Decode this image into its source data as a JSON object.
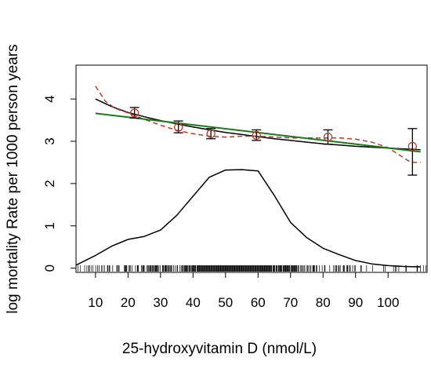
{
  "chart_data": {
    "type": "line",
    "xlabel": "25-hydroxyvitamin D (nmol/L)",
    "ylabel": "log mortality Rate per 1000 person years",
    "xlim": [
      4,
      112
    ],
    "ylim": [
      -0.1,
      4.8
    ],
    "xticks": [
      10,
      20,
      30,
      40,
      50,
      60,
      70,
      80,
      90,
      100
    ],
    "yticks": [
      0,
      1,
      2,
      3,
      4
    ],
    "grid": false,
    "legend": "none",
    "series": [
      {
        "style": "black-solid-curve",
        "color": "#000000",
        "points": [
          [
            10,
            4.0
          ],
          [
            15,
            3.82
          ],
          [
            20,
            3.68
          ],
          [
            25,
            3.58
          ],
          [
            30,
            3.49
          ],
          [
            35,
            3.41
          ],
          [
            40,
            3.34
          ],
          [
            45,
            3.27
          ],
          [
            50,
            3.21
          ],
          [
            55,
            3.16
          ],
          [
            60,
            3.11
          ],
          [
            65,
            3.06
          ],
          [
            70,
            3.02
          ],
          [
            75,
            2.98
          ],
          [
            80,
            2.94
          ],
          [
            85,
            2.91
          ],
          [
            90,
            2.88
          ],
          [
            95,
            2.86
          ],
          [
            100,
            2.84
          ],
          [
            105,
            2.82
          ],
          [
            110,
            2.8
          ]
        ]
      },
      {
        "style": "red-dashed-curve",
        "color": "#c0392b",
        "points": [
          [
            10,
            4.3
          ],
          [
            13,
            3.95
          ],
          [
            16,
            3.78
          ],
          [
            20,
            3.67
          ],
          [
            25,
            3.52
          ],
          [
            30,
            3.38
          ],
          [
            35,
            3.26
          ],
          [
            40,
            3.18
          ],
          [
            45,
            3.12
          ],
          [
            50,
            3.1
          ],
          [
            55,
            3.12
          ],
          [
            60,
            3.12
          ],
          [
            65,
            3.1
          ],
          [
            70,
            3.08
          ],
          [
            75,
            3.08
          ],
          [
            80,
            3.08
          ],
          [
            85,
            3.08
          ],
          [
            90,
            3.05
          ],
          [
            95,
            2.98
          ],
          [
            100,
            2.85
          ],
          [
            104,
            2.65
          ],
          [
            107,
            2.5
          ],
          [
            110,
            2.5
          ]
        ]
      },
      {
        "style": "green-straight-line",
        "color": "#1a7a1a",
        "points": [
          [
            10,
            3.66
          ],
          [
            110,
            2.75
          ]
        ]
      },
      {
        "style": "black-density-curve",
        "color": "#000000",
        "points": [
          [
            4,
            0.07
          ],
          [
            10,
            0.3
          ],
          [
            15,
            0.52
          ],
          [
            20,
            0.68
          ],
          [
            25,
            0.75
          ],
          [
            30,
            0.9
          ],
          [
            35,
            1.25
          ],
          [
            40,
            1.7
          ],
          [
            45,
            2.15
          ],
          [
            50,
            2.32
          ],
          [
            55,
            2.33
          ],
          [
            60,
            2.3
          ],
          [
            65,
            1.72
          ],
          [
            70,
            1.08
          ],
          [
            75,
            0.72
          ],
          [
            80,
            0.47
          ],
          [
            85,
            0.32
          ],
          [
            90,
            0.18
          ],
          [
            95,
            0.1
          ],
          [
            100,
            0.06
          ],
          [
            105,
            0.04
          ],
          [
            110,
            0.03
          ]
        ]
      }
    ],
    "points_with_error_bars": [
      {
        "x": 22,
        "y": 3.67,
        "low": 3.55,
        "high": 3.8
      },
      {
        "x": 35.5,
        "y": 3.33,
        "low": 3.2,
        "high": 3.48
      },
      {
        "x": 45.5,
        "y": 3.18,
        "low": 3.06,
        "high": 3.3
      },
      {
        "x": 59.5,
        "y": 3.14,
        "low": 3.02,
        "high": 3.27
      },
      {
        "x": 81.5,
        "y": 3.1,
        "low": 2.93,
        "high": 3.27
      },
      {
        "x": 107.5,
        "y": 2.88,
        "low": 2.2,
        "high": 3.3
      }
    ]
  }
}
